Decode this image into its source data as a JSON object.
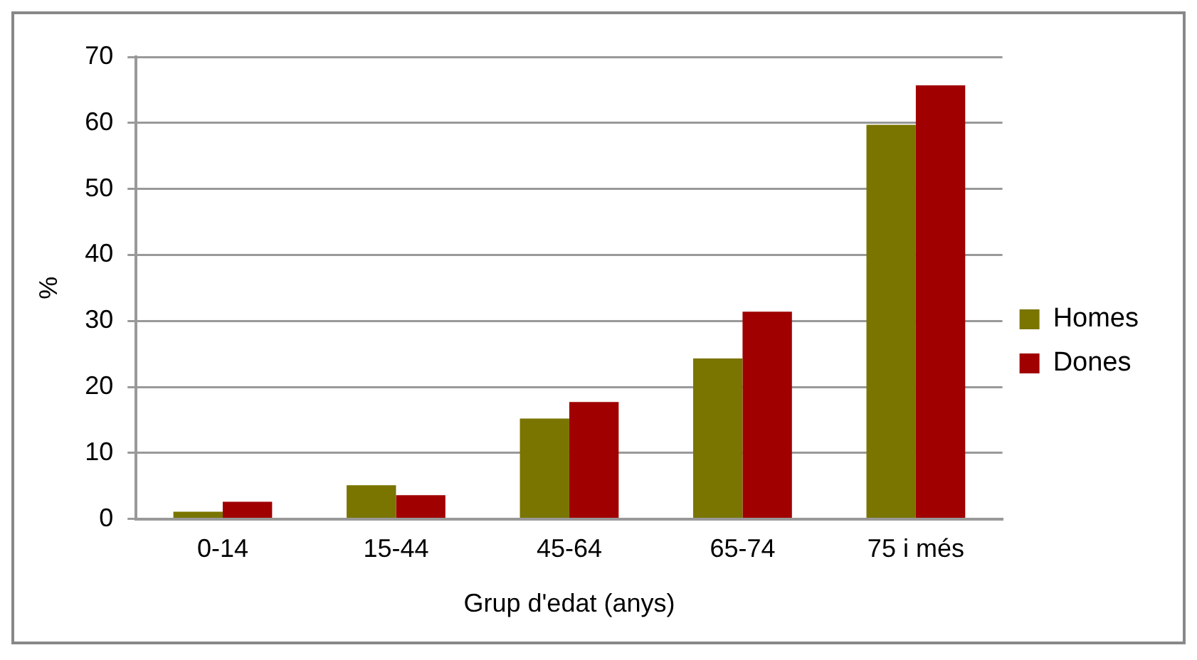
{
  "chart_data": {
    "type": "bar",
    "xlabel": "Grup d'edat (anys)",
    "ylabel": "%",
    "categories": [
      "0-14",
      "15-44",
      "45-64",
      "65-74",
      "75 i més"
    ],
    "series": [
      {
        "name": "Homes",
        "color": "#7a7400",
        "values": [
          1.1,
          5.1,
          15.2,
          24.3,
          59.7
        ]
      },
      {
        "name": "Dones",
        "color": "#a00000",
        "values": [
          2.6,
          3.6,
          17.7,
          31.4,
          65.7
        ]
      }
    ],
    "ylim": [
      0,
      70
    ],
    "yticks": [
      0,
      10,
      20,
      30,
      40,
      50,
      60,
      70
    ],
    "grid": "y",
    "legend": "right"
  }
}
